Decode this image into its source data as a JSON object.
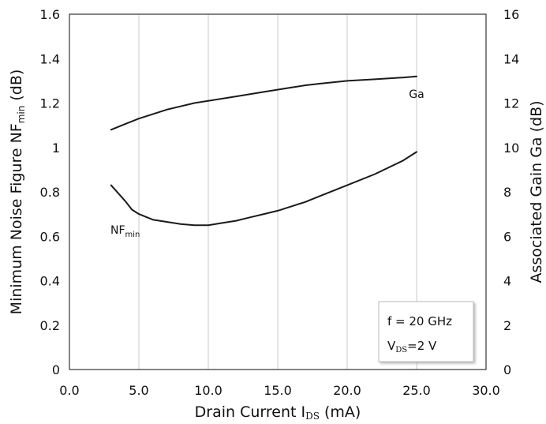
{
  "chart_data": {
    "type": "line",
    "xlabel": {
      "main": "Drain Current I",
      "sub": "DS",
      "unit": " (mA)"
    },
    "ylabel": {
      "main": "Minimum Noise Figure NF",
      "sub": "min",
      "unit": " (dB)"
    },
    "y2label": "Associated Gain Ga (dB)",
    "xlim": [
      0,
      30
    ],
    "ylim": [
      0,
      1.6
    ],
    "y2lim": [
      0,
      16
    ],
    "x_ticks": [
      "0.0",
      "5.0",
      "10.0",
      "15.0",
      "20.0",
      "25.0",
      "30.0"
    ],
    "y_ticks": [
      "0",
      "0.2",
      "0.4",
      "0.6",
      "0.8",
      "1",
      "1.2",
      "1.4",
      "1.6"
    ],
    "y2_ticks": [
      "0",
      "2",
      "4",
      "6",
      "8",
      "10",
      "12",
      "14",
      "16"
    ],
    "grid": "vertical",
    "series": [
      {
        "name": "Ga",
        "axis": "right",
        "points": [
          [
            3,
            10.8
          ],
          [
            4,
            11.05
          ],
          [
            5,
            11.3
          ],
          [
            6,
            11.5
          ],
          [
            7,
            11.7
          ],
          [
            8,
            11.85
          ],
          [
            9,
            12.0
          ],
          [
            10,
            12.1
          ],
          [
            12,
            12.3
          ],
          [
            14,
            12.5
          ],
          [
            16,
            12.7
          ],
          [
            17,
            12.8
          ],
          [
            18,
            12.87
          ],
          [
            20,
            13.0
          ],
          [
            22,
            13.07
          ],
          [
            24,
            13.15
          ],
          [
            25,
            13.2
          ]
        ]
      },
      {
        "name_main": "NF",
        "name_sub": "min",
        "axis": "left",
        "points": [
          [
            3,
            0.83
          ],
          [
            4,
            0.76
          ],
          [
            4.5,
            0.72
          ],
          [
            5,
            0.7
          ],
          [
            6,
            0.675
          ],
          [
            7,
            0.665
          ],
          [
            8,
            0.655
          ],
          [
            9,
            0.65
          ],
          [
            10,
            0.65
          ],
          [
            11,
            0.66
          ],
          [
            12,
            0.67
          ],
          [
            13,
            0.685
          ],
          [
            14,
            0.7
          ],
          [
            15,
            0.715
          ],
          [
            16,
            0.735
          ],
          [
            17,
            0.755
          ],
          [
            18,
            0.78
          ],
          [
            20,
            0.83
          ],
          [
            22,
            0.88
          ],
          [
            24,
            0.94
          ],
          [
            25,
            0.98
          ]
        ]
      }
    ],
    "annotations": {
      "freq": "f = 20 GHz",
      "vds_main": "V",
      "vds_sub": "DS",
      "vds_value": "=2 V"
    }
  }
}
